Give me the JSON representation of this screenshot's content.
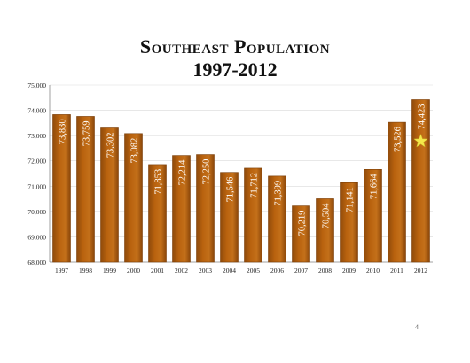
{
  "page": {
    "number": "4"
  },
  "chart_data": {
    "type": "bar",
    "title": "Southeast Population",
    "subtitle": "1997-2012",
    "categories": [
      "1997",
      "1998",
      "1999",
      "2000",
      "2001",
      "2002",
      "2003",
      "2004",
      "2005",
      "2006",
      "2007",
      "2008",
      "2009",
      "2010",
      "2011",
      "2012"
    ],
    "values": [
      73830,
      73759,
      73302,
      73082,
      71853,
      72214,
      72250,
      71546,
      71712,
      71399,
      70219,
      70504,
      71141,
      71664,
      73526,
      74423
    ],
    "value_labels": [
      "73,830",
      "73,759",
      "73,302",
      "73,082",
      "71,853",
      "72,214",
      "72,250",
      "71,546",
      "71,712",
      "71,399",
      "70,219",
      "70,504",
      "71,141",
      "71,664",
      "73,526",
      "74,423"
    ],
    "ylim": [
      68000,
      75000
    ],
    "yticks": [
      "68,000",
      "69,000",
      "70,000",
      "71,000",
      "72,000",
      "73,000",
      "74,000",
      "75,000"
    ],
    "ytick_values": [
      68000,
      69000,
      70000,
      71000,
      72000,
      73000,
      74000,
      75000
    ],
    "grid": true,
    "bar_color": "#b8620e",
    "bar_edge_color": "#7a3e08",
    "highlight": {
      "category": "2012",
      "marker": "star-icon",
      "color": "#f4e84a"
    }
  }
}
